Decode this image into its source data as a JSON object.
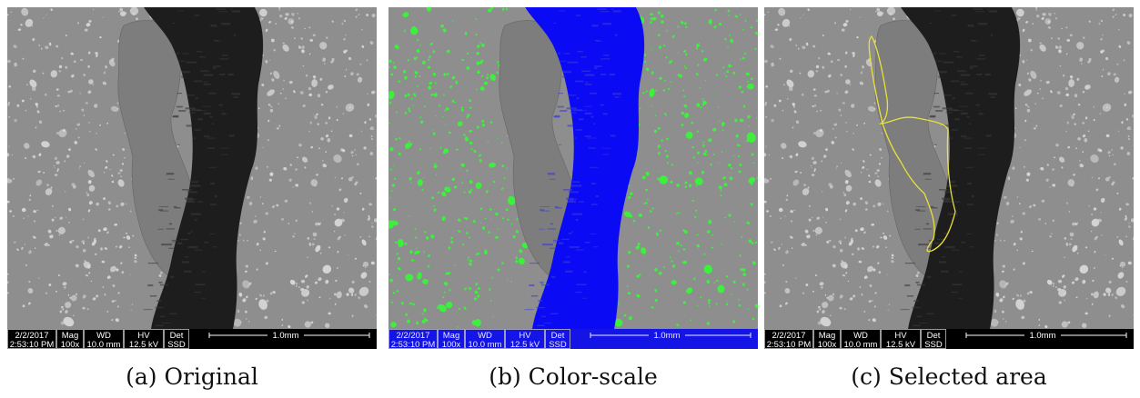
{
  "panels": [
    {
      "id": "a",
      "caption": "(a) Original",
      "databar": {
        "date": "2/2/2017",
        "time": "2:53:10 PM",
        "mag_label": "Mag",
        "mag_value": "100x",
        "wd_label": "WD",
        "wd_value": "10.0 mm",
        "hv_label": "HV",
        "hv_value": "12.5 kV",
        "det_label": "Det",
        "det_value": "SSD",
        "scale_label": "1.0mm"
      }
    },
    {
      "id": "b",
      "caption": "(b) Color-scale",
      "databar": {
        "date": "2/2/2017",
        "time": "2:53:10 PM",
        "mag_label": "Mag",
        "mag_value": "100x",
        "wd_label": "WD",
        "wd_value": "10.0 mm",
        "hv_label": "HV",
        "hv_value": "12.5 kV",
        "det_label": "Det",
        "det_value": "SSD",
        "scale_label": "1.0mm"
      }
    },
    {
      "id": "c",
      "caption": "(c) Selected area",
      "databar": {
        "date": "2/2/2017",
        "time": "2:53:10 PM",
        "mag_label": "Mag",
        "mag_value": "100x",
        "wd_label": "WD",
        "wd_value": "10.0 mm",
        "hv_label": "HV",
        "hv_value": "12.5 kV",
        "det_label": "Det",
        "det_value": "SSD",
        "scale_label": "1.0mm"
      }
    }
  ],
  "colors": {
    "matrix_gray": "#8e8e8e",
    "crack_dark": "#1d1d1d",
    "inclusion_gray": "#7d7d7d",
    "aggregate_light": "#d6d6d6",
    "aggregate_green": "#3df03d",
    "crack_blue": "#0a0af5",
    "selection_yellow": "#e8e23a",
    "bar_black": "#000000",
    "bar_blue": "#1414e6"
  }
}
